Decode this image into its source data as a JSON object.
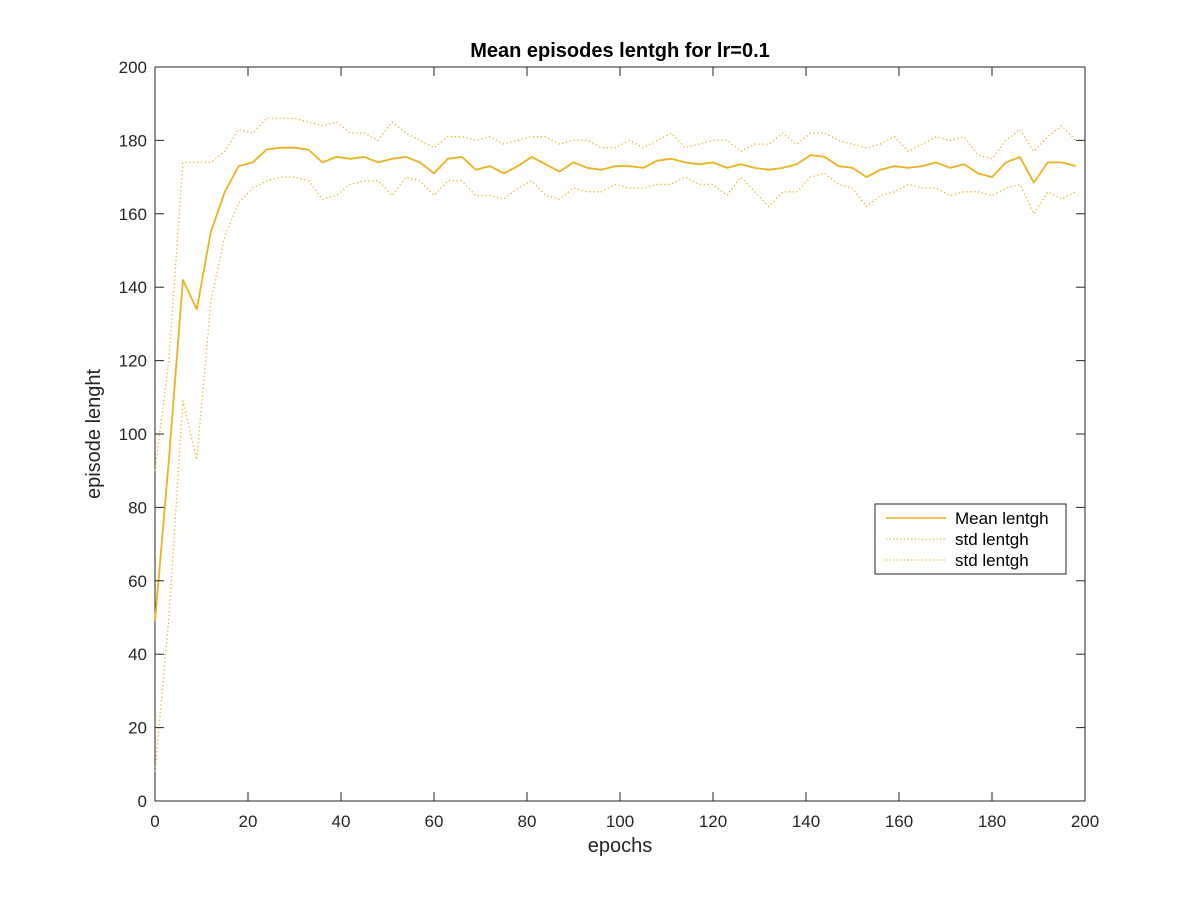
{
  "chart_data": {
    "type": "line",
    "title": "Mean episodes lentgh for lr=0.1",
    "xlabel": "epochs",
    "ylabel": "episode lenght",
    "xlim": [
      0,
      200
    ],
    "ylim": [
      0,
      200
    ],
    "xticks": [
      0,
      20,
      40,
      60,
      80,
      100,
      120,
      140,
      160,
      180,
      200
    ],
    "yticks": [
      0,
      20,
      40,
      60,
      80,
      100,
      120,
      140,
      160,
      180,
      200
    ],
    "grid": false,
    "legend_position": "right",
    "color": "#EDB120",
    "x": [
      0,
      3,
      6,
      9,
      12,
      15,
      18,
      21,
      24,
      27,
      30,
      33,
      36,
      39,
      42,
      45,
      48,
      51,
      54,
      57,
      60,
      63,
      66,
      69,
      72,
      75,
      78,
      81,
      84,
      87,
      90,
      93,
      96,
      99,
      102,
      105,
      108,
      111,
      114,
      117,
      120,
      123,
      126,
      129,
      132,
      135,
      138,
      141,
      144,
      147,
      150,
      153,
      156,
      159,
      162,
      165,
      168,
      171,
      174,
      177,
      180,
      183,
      186,
      189,
      192,
      195,
      198
    ],
    "series": [
      {
        "name": "Mean lentgh",
        "style": "solid",
        "values": [
          49,
          93,
          142,
          134,
          155,
          166,
          173,
          174,
          177.5,
          178,
          178,
          177.5,
          174,
          175.5,
          175,
          175.5,
          174,
          175,
          175.5,
          174,
          171,
          175,
          175.5,
          172,
          173,
          171,
          173,
          175.5,
          173.5,
          171.5,
          174,
          172.5,
          172,
          173,
          173,
          172.5,
          174.5,
          175,
          174,
          173.5,
          174,
          172.5,
          173.5,
          172.5,
          172,
          172.5,
          173.5,
          176,
          175.5,
          173,
          172.5,
          170,
          172,
          173,
          172.5,
          173,
          174,
          172.5,
          173.5,
          171,
          170,
          174,
          175.5,
          168.5,
          174,
          174,
          173
        ]
      },
      {
        "name": "std lentgh",
        "style": "dotted",
        "values": [
          90,
          120,
          174,
          174,
          174,
          177,
          183,
          182,
          186,
          186,
          186,
          185,
          184,
          185,
          182,
          182,
          180,
          185,
          182,
          180,
          178,
          181,
          181,
          180,
          181,
          179,
          180,
          181,
          181,
          179,
          180,
          180,
          178,
          178,
          180,
          178,
          180,
          182,
          178,
          179,
          180,
          180,
          177,
          179,
          179,
          182,
          179,
          182,
          182,
          180,
          179,
          178,
          179,
          181,
          177,
          179,
          181,
          180,
          181,
          176,
          175,
          180,
          183,
          177,
          181,
          184,
          180
        ]
      },
      {
        "name": "std lentgh",
        "style": "dotted",
        "values": [
          8,
          50,
          109,
          93,
          136,
          154,
          163,
          167,
          169,
          170,
          170,
          169,
          164,
          165,
          168,
          169,
          169,
          165,
          170,
          169,
          165,
          169,
          169,
          165,
          165,
          164,
          167,
          169,
          165,
          164,
          167,
          166,
          166,
          168,
          167,
          167,
          168,
          168,
          170,
          168,
          168,
          165,
          170,
          166,
          162,
          166,
          166,
          170,
          171,
          168,
          167,
          162,
          165,
          166,
          168,
          167,
          167,
          165,
          166,
          166,
          165,
          167,
          168,
          160,
          166,
          164,
          166
        ]
      }
    ]
  }
}
